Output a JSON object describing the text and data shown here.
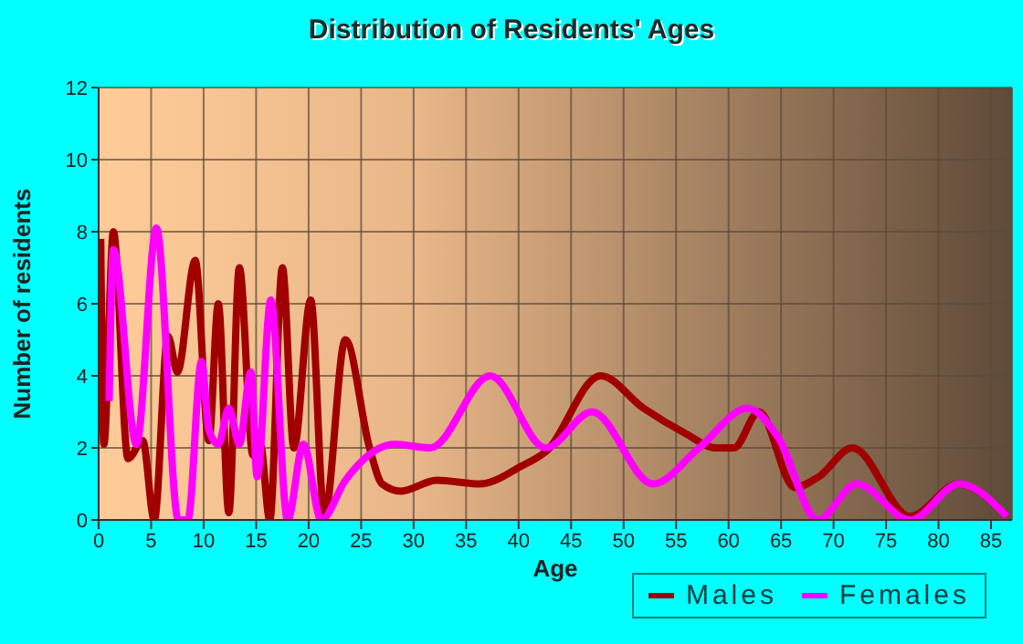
{
  "chart_data": {
    "type": "line",
    "title": "Distribution of Residents' Ages",
    "xlabel": "Age",
    "ylabel": "Number of residents",
    "xlim": [
      0,
      87
    ],
    "xticks": [
      0,
      5,
      10,
      15,
      20,
      25,
      30,
      35,
      40,
      45,
      50,
      55,
      60,
      65,
      70,
      75,
      80,
      85
    ],
    "ylim": [
      0,
      12
    ],
    "yticks": [
      0,
      2,
      4,
      6,
      8,
      10,
      12
    ],
    "grid": true,
    "legend": "bottom right",
    "marker": "none",
    "line_style": "solid",
    "series": [
      {
        "name": "Males",
        "color": "#a00000",
        "x": [
          0.2,
          0.5,
          1.4,
          2.8,
          4.2,
          5.3,
          6.6,
          7.5,
          9.2,
          10.5,
          11.4,
          12.4,
          13.4,
          14.7,
          15.4,
          16.3,
          17.5,
          18.6,
          20.2,
          21.5,
          23.5,
          25.8,
          27,
          28.8,
          32.2,
          36.3,
          40.3,
          42.6,
          47.8,
          51.9,
          55.9,
          58.8,
          60.5,
          62.9,
          66.3,
          68.6,
          71.8,
          77.3,
          81.9,
          86.5
        ],
        "values": [
          7.8,
          2.1,
          8,
          1.7,
          2.2,
          0,
          5.1,
          4.1,
          7.2,
          2.2,
          6,
          0.2,
          7,
          1.8,
          2.1,
          0,
          7,
          2,
          6.1,
          0.1,
          5,
          2,
          1,
          0.8,
          1.1,
          1,
          1.5,
          1.9,
          4,
          3.1,
          2.4,
          2,
          2,
          3,
          0.9,
          1.2,
          2,
          0.1,
          1,
          0.1
        ]
      },
      {
        "name": "Females",
        "color": "#ff00ff",
        "x": [
          1,
          1.4,
          3.6,
          5.5,
          7.6,
          8.5,
          9.8,
          10.5,
          11.4,
          12.4,
          13.4,
          14.5,
          15.1,
          16.4,
          18,
          19.5,
          21.2,
          23.5,
          28.2,
          31.6,
          37.3,
          42.6,
          47,
          52.8,
          57.2,
          61.8,
          64.7,
          68.5,
          72.2,
          77.3,
          82,
          86.5
        ],
        "values": [
          3.3,
          7.5,
          2.1,
          8.1,
          0,
          0,
          4.4,
          2.5,
          2.1,
          3.1,
          2.1,
          4.1,
          1.2,
          6.1,
          0,
          2.1,
          0,
          1.1,
          2.1,
          2,
          4,
          2,
          3,
          1,
          2,
          3.1,
          2.3,
          0,
          1,
          0,
          1,
          0.1
        ]
      }
    ]
  }
}
